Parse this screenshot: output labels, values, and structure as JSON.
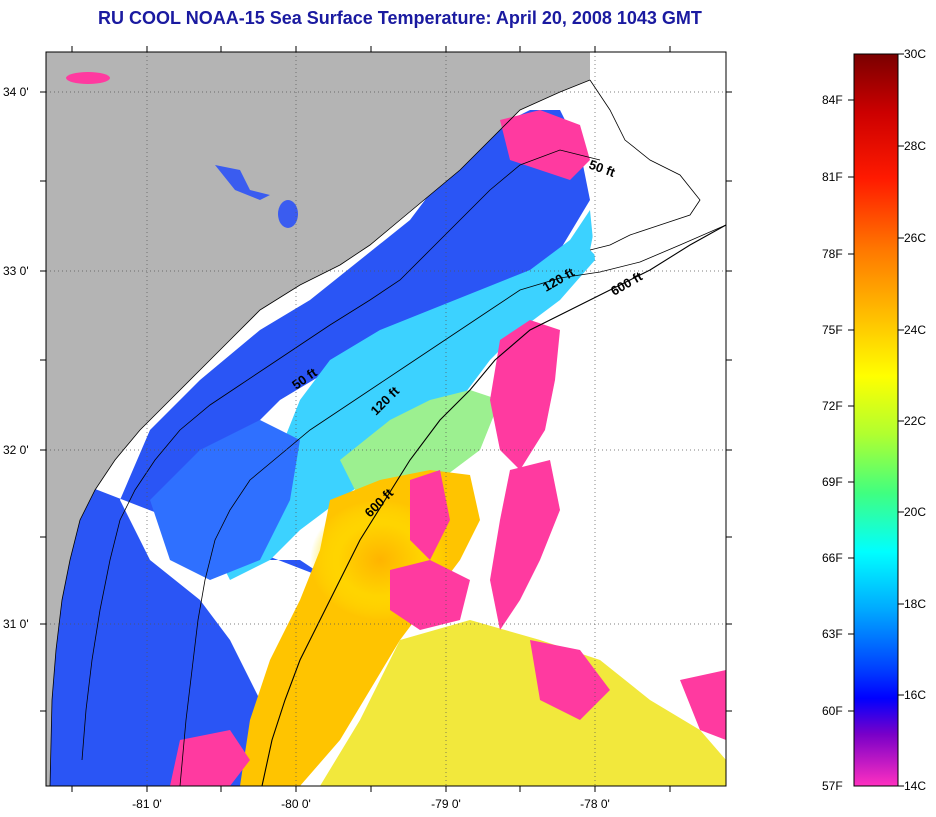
{
  "title": "RU COOL  NOAA-15  Sea Surface Temperature:  April 20, 2008 1043 GMT",
  "map": {
    "lat_labels": [
      "34 0'",
      "33 0'",
      "32 0'",
      "31 0'"
    ],
    "lon_labels": [
      "-81 0'",
      "-80 0'",
      "-79 0'",
      "-78 0'"
    ],
    "contour_labels": [
      "50 ft",
      "120 ft",
      "600 ft",
      "50 ft",
      "120 ft",
      "600 ft"
    ],
    "colors": {
      "land": "#b4b4b4",
      "cloud": "#ff3aa0",
      "no_data": "#ffffff",
      "sst_cold": "#1e3cff",
      "sst_mid": "#28c8ff",
      "sst_warm": "#ffc800"
    }
  },
  "colorbar": {
    "celsius_labels": [
      "30C",
      "28C",
      "26C",
      "24C",
      "22C",
      "20C",
      "18C",
      "16C",
      "14C"
    ],
    "fahrenheit_labels": [
      "84F",
      "81F",
      "78F",
      "75F",
      "72F",
      "69F",
      "66F",
      "63F",
      "60F",
      "57F"
    ],
    "gradient_stops": [
      "#7a0000",
      "#cc0000",
      "#ff2a00",
      "#ff8c00",
      "#ffd000",
      "#ffff00",
      "#a0ff40",
      "#30ff90",
      "#00ffff",
      "#00b0ff",
      "#0060ff",
      "#0000ff",
      "#7000c0",
      "#ff30c0"
    ]
  }
}
